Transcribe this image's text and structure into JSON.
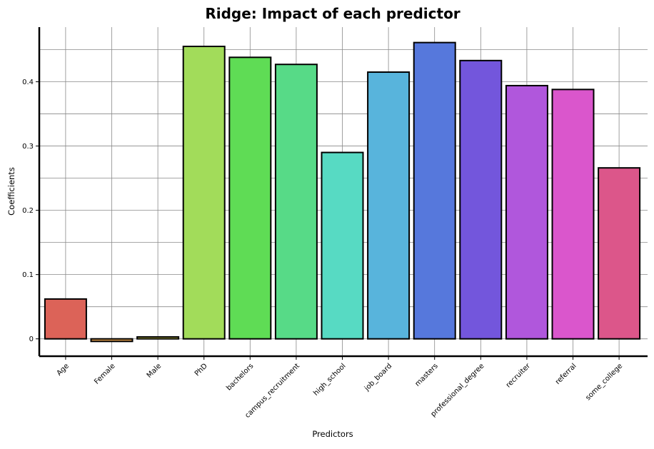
{
  "chart_data": {
    "type": "bar",
    "title": "Ridge: Impact of each predictor",
    "xlabel": "Predictors",
    "ylabel": "Coefficients",
    "categories": [
      "Age",
      "Female",
      "Male",
      "PhD",
      "bachelors",
      "campus_recruitment",
      "high_school",
      "job_board",
      "masters",
      "professional_degree",
      "recruiter",
      "referral",
      "some_college"
    ],
    "values": [
      0.062,
      -0.004,
      0.003,
      0.455,
      0.438,
      0.427,
      0.29,
      0.415,
      0.461,
      0.433,
      0.394,
      0.388,
      0.266
    ],
    "colors": [
      "#dc6358",
      "#dc9a4a",
      "#d4d24a",
      "#a2dc5a",
      "#5fdc55",
      "#57da87",
      "#57dac3",
      "#58b4dc",
      "#5678dc",
      "#7356dc",
      "#b057dc",
      "#da56cc",
      "#dc568a"
    ],
    "ylim": [
      -0.027,
      0.485
    ],
    "yticks": [
      0,
      0.1,
      0.2,
      0.3,
      0.4
    ],
    "ytick_labels": [
      "0",
      "0.1",
      "0.2",
      "0.3",
      "0.4"
    ],
    "grid": true,
    "legend": "none"
  }
}
